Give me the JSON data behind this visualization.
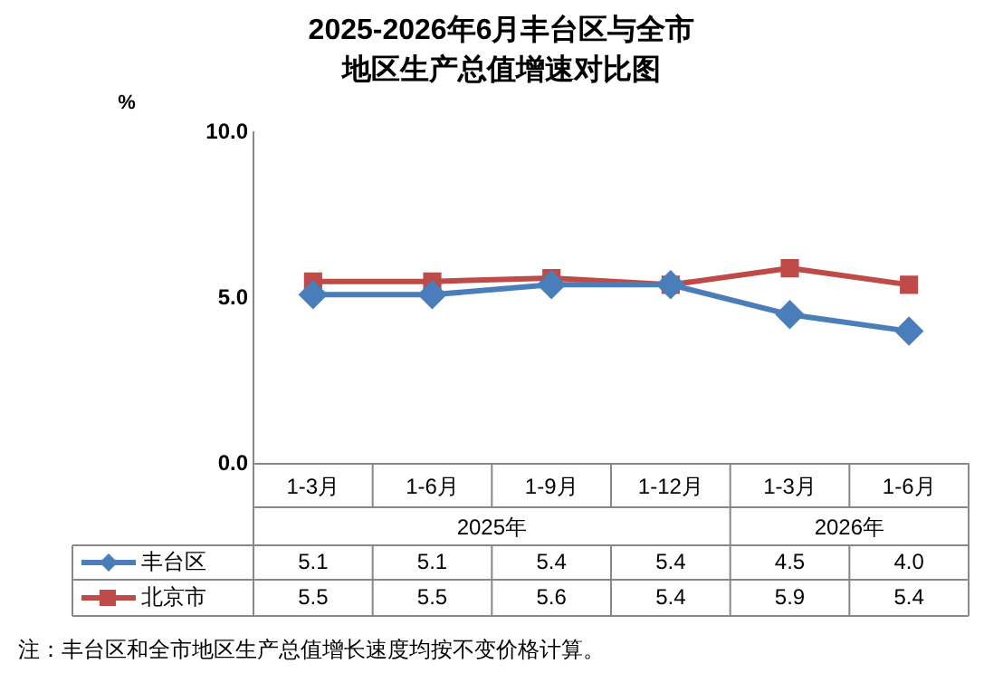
{
  "chart_data": {
    "type": "line",
    "title": "2025-2026年6月丰台区与全市地区生产总值增速对比图",
    "ylabel": "%",
    "categories": [
      "1-3月",
      "1-6月",
      "1-9月",
      "1-12月",
      "1-3月",
      "1-6月"
    ],
    "series": [
      {
        "name": "丰台区",
        "color": "#4a7ebb",
        "marker": "diamond",
        "values": [
          5.1,
          5.1,
          5.4,
          5.4,
          4.5,
          4.0
        ],
        "value_labels": [
          "5.1",
          "5.1",
          "5.4",
          "5.4",
          "4.5",
          "4.0"
        ]
      },
      {
        "name": "北京市",
        "color": "#be4b48",
        "marker": "square",
        "values": [
          5.5,
          5.5,
          5.6,
          5.4,
          5.9,
          5.4
        ],
        "value_labels": [
          "5.5",
          "5.5",
          "5.6",
          "5.4",
          "5.9",
          "5.4"
        ]
      }
    ],
    "ylim": [
      0,
      10
    ],
    "yticks": [
      {
        "value": 0,
        "label": "0.0"
      },
      {
        "value": 5,
        "label": "5.0"
      },
      {
        "value": 10,
        "label": "10.0"
      }
    ],
    "grid": false,
    "legend": "bottom",
    "line_style": "solid",
    "annotations": [
      "2025年",
      "2026年",
      "注：丰台区和全市地区生产总值增长速度均按不变价格计算。"
    ]
  }
}
